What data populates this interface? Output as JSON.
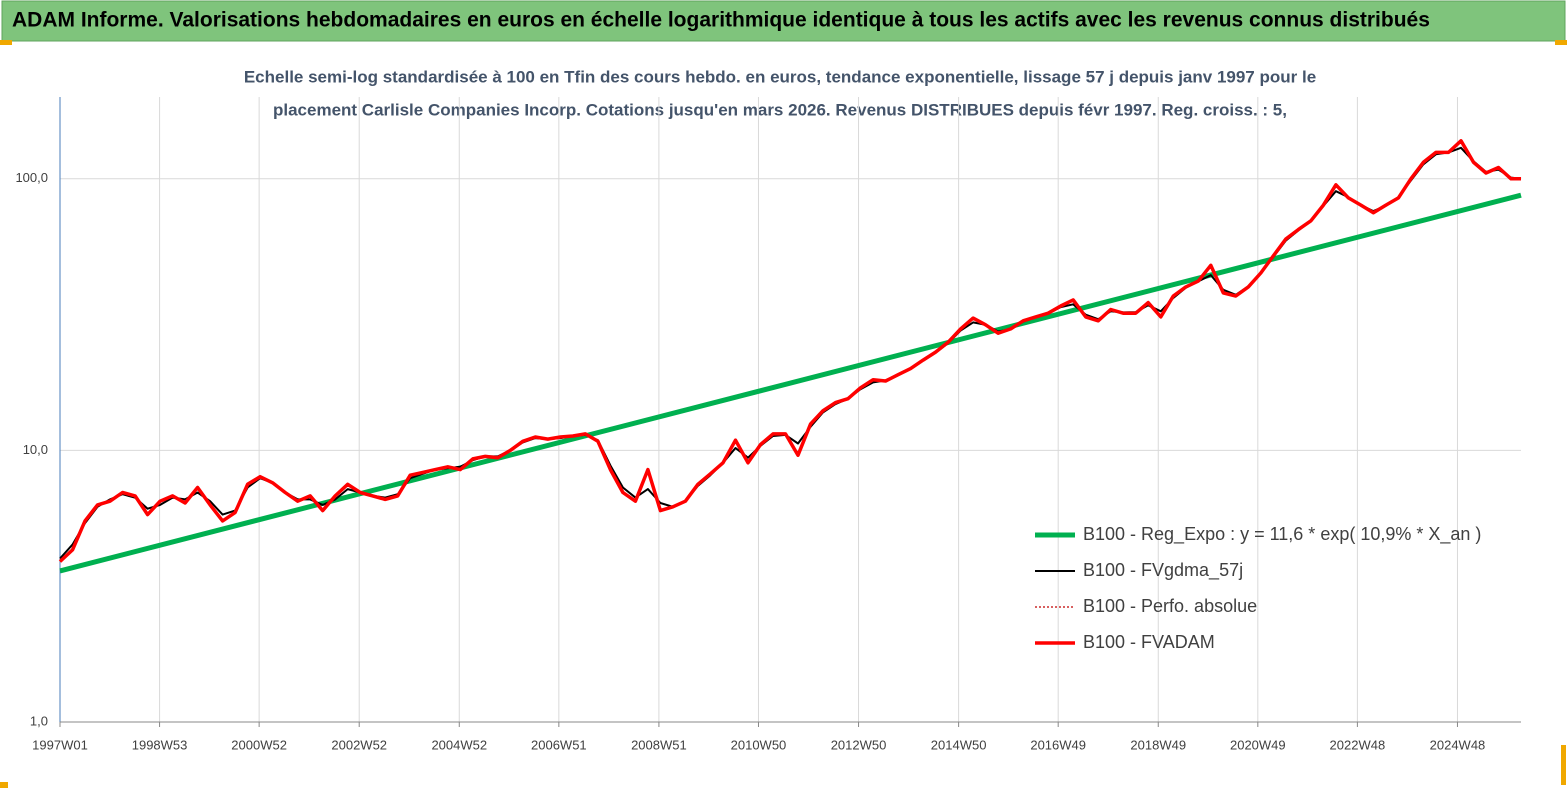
{
  "header": {
    "title": "ADAM Informe. Valorisations hebdomadaires en euros en échelle logarithmique identique à tous les actifs avec les revenus connus distribués"
  },
  "chart_data": {
    "type": "line",
    "subtitle": [
      "Echelle semi-log standardisée à 100 en Tfin des cours hebdo. en euros, tendance exponentielle, lissage 57 j depuis janv 1997 pour le",
      "placement Carlisle Companies Incorp. Cotations jusqu'en mars 2026. Revenus DISTRIBUES depuis févr 1997. Reg. croiss. : 5,"
    ],
    "log_y": true,
    "grid": true,
    "legend": "lower right",
    "xlim": [
      1997.0,
      2026.2
    ],
    "ylim": [
      1,
      200
    ],
    "yticks": [
      {
        "value": 1,
        "label": "1,0"
      },
      {
        "value": 10,
        "label": "10,0"
      },
      {
        "value": 100,
        "label": "100,0"
      }
    ],
    "xticks": [
      {
        "value": 1997.0,
        "label": "1997W01"
      },
      {
        "value": 1998.99,
        "label": "1998W53"
      },
      {
        "value": 2000.98,
        "label": "2000W52"
      },
      {
        "value": 2002.98,
        "label": "2002W52"
      },
      {
        "value": 2004.98,
        "label": "2004W52"
      },
      {
        "value": 2006.97,
        "label": "2006W51"
      },
      {
        "value": 2008.97,
        "label": "2008W51"
      },
      {
        "value": 2010.96,
        "label": "2010W50"
      },
      {
        "value": 2012.96,
        "label": "2012W50"
      },
      {
        "value": 2014.96,
        "label": "2014W50"
      },
      {
        "value": 2016.95,
        "label": "2016W49"
      },
      {
        "value": 2018.95,
        "label": "2018W49"
      },
      {
        "value": 2020.94,
        "label": "2020W49"
      },
      {
        "value": 2022.93,
        "label": "2022W48"
      },
      {
        "value": 2024.93,
        "label": "2024W48"
      }
    ],
    "x": [
      1997.0,
      1997.25,
      1997.5,
      1997.75,
      1998.0,
      1998.25,
      1998.5,
      1998.75,
      1999.0,
      1999.25,
      1999.5,
      1999.75,
      2000.0,
      2000.25,
      2000.5,
      2000.75,
      2001.0,
      2001.25,
      2001.5,
      2001.75,
      2002.0,
      2002.25,
      2002.5,
      2002.75,
      2003.0,
      2003.25,
      2003.5,
      2003.75,
      2004.0,
      2004.25,
      2004.5,
      2004.75,
      2005.0,
      2005.25,
      2005.5,
      2005.75,
      2006.0,
      2006.25,
      2006.5,
      2006.75,
      2007.0,
      2007.25,
      2007.5,
      2007.75,
      2008.0,
      2008.25,
      2008.5,
      2008.75,
      2009.0,
      2009.25,
      2009.5,
      2009.75,
      2010.0,
      2010.25,
      2010.5,
      2010.75,
      2011.0,
      2011.25,
      2011.5,
      2011.75,
      2012.0,
      2012.25,
      2012.5,
      2012.75,
      2013.0,
      2013.25,
      2013.5,
      2013.75,
      2014.0,
      2014.25,
      2014.5,
      2014.75,
      2015.0,
      2015.25,
      2015.5,
      2015.75,
      2016.0,
      2016.25,
      2016.5,
      2016.75,
      2017.0,
      2017.25,
      2017.5,
      2017.75,
      2018.0,
      2018.25,
      2018.5,
      2018.75,
      2019.0,
      2019.25,
      2019.5,
      2019.75,
      2020.0,
      2020.25,
      2020.5,
      2020.75,
      2021.0,
      2021.25,
      2021.5,
      2021.75,
      2022.0,
      2022.25,
      2022.5,
      2022.75,
      2023.0,
      2023.25,
      2023.5,
      2023.75,
      2024.0,
      2024.25,
      2024.5,
      2024.75,
      2025.0,
      2025.25,
      2025.5,
      2025.75,
      2026.0,
      2026.2
    ],
    "series": [
      {
        "name": "B100 - Reg_Expo : y = 11,6 * exp( 10,9% *  X_an )",
        "color": "#00b050",
        "width": 5,
        "x": [
          1997.0,
          2026.2
        ],
        "values": [
          3.6,
          87
        ]
      },
      {
        "name": "B100 - FVgdma_57j",
        "color": "#000000",
        "width": 2,
        "values": [
          4.0,
          4.5,
          5.4,
          6.2,
          6.6,
          6.9,
          6.7,
          6.1,
          6.3,
          6.7,
          6.6,
          7.0,
          6.5,
          5.8,
          6.0,
          7.3,
          7.9,
          7.6,
          7.0,
          6.6,
          6.6,
          6.3,
          6.6,
          7.2,
          7.0,
          6.8,
          6.7,
          6.9,
          7.9,
          8.2,
          8.5,
          8.6,
          8.7,
          9.2,
          9.5,
          9.5,
          10.0,
          10.7,
          11.1,
          11.0,
          11.1,
          11.3,
          11.4,
          10.9,
          8.8,
          7.3,
          6.7,
          7.2,
          6.4,
          6.2,
          6.5,
          7.4,
          8.1,
          9.0,
          10.2,
          9.4,
          10.4,
          11.3,
          11.4,
          10.6,
          12.2,
          13.8,
          14.8,
          15.5,
          16.8,
          17.8,
          18.1,
          18.9,
          20.0,
          21.4,
          22.9,
          24.8,
          27.6,
          29.6,
          29.0,
          27.4,
          27.9,
          29.8,
          30.9,
          31.9,
          33.7,
          34.5,
          31.6,
          30.4,
          32.5,
          32.2,
          32.3,
          34.2,
          32.5,
          36.4,
          39.7,
          41.9,
          44.2,
          39.0,
          37.4,
          40.2,
          45.0,
          51.5,
          59.2,
          64.5,
          70.0,
          79.5,
          90.0,
          85.5,
          80.0,
          76.0,
          79.5,
          85.5,
          98.5,
          113.0,
          123.0,
          125.0,
          130.0,
          116.0,
          106.0,
          108.0,
          101.0,
          100.0
        ]
      },
      {
        "name": "B100 - Perfo. absolue",
        "color": "#c00000",
        "width": 1.2,
        "dash": "2,2",
        "values": [
          3.9,
          4.3,
          5.5,
          6.3,
          6.5,
          7.0,
          6.8,
          5.8,
          6.5,
          6.8,
          6.4,
          7.3,
          6.3,
          5.5,
          5.9,
          7.5,
          8.0,
          7.6,
          7.0,
          6.5,
          6.8,
          6.0,
          6.8,
          7.5,
          7.0,
          6.8,
          6.6,
          6.8,
          8.1,
          8.3,
          8.5,
          8.7,
          8.5,
          9.3,
          9.5,
          9.4,
          10.0,
          10.8,
          11.2,
          11.0,
          11.2,
          11.3,
          11.5,
          10.8,
          8.5,
          7.0,
          6.5,
          8.5,
          6.0,
          6.2,
          6.5,
          7.5,
          8.2,
          9.0,
          10.9,
          9.0,
          10.5,
          11.5,
          11.5,
          9.6,
          12.5,
          14.0,
          15.0,
          15.5,
          17.0,
          18.2,
          18.0,
          19.0,
          20.0,
          21.5,
          23.0,
          25.0,
          28.0,
          30.7,
          29.0,
          27.0,
          28.0,
          30.0,
          31.0,
          32.0,
          34.0,
          35.8,
          31.0,
          30.0,
          33.0,
          32.0,
          32.0,
          35.0,
          31.0,
          37.0,
          40.0,
          42.0,
          48.0,
          38.0,
          37.0,
          40.0,
          45.0,
          52.0,
          60.0,
          65.0,
          70.0,
          80.0,
          95.0,
          85.0,
          80.0,
          75.0,
          80.0,
          85.0,
          100.0,
          115.0,
          125.0,
          125.0,
          138.0,
          115.0,
          105.0,
          110.0,
          100.0,
          100.0
        ]
      },
      {
        "name": "B100 - FVADAM",
        "color": "#ff0000",
        "width": 3.5,
        "values": [
          3.9,
          4.3,
          5.5,
          6.3,
          6.5,
          7.0,
          6.8,
          5.8,
          6.5,
          6.8,
          6.4,
          7.3,
          6.3,
          5.5,
          5.9,
          7.5,
          8.0,
          7.6,
          7.0,
          6.5,
          6.8,
          6.0,
          6.8,
          7.5,
          7.0,
          6.8,
          6.6,
          6.8,
          8.1,
          8.3,
          8.5,
          8.7,
          8.5,
          9.3,
          9.5,
          9.4,
          10.0,
          10.8,
          11.2,
          11.0,
          11.2,
          11.3,
          11.5,
          10.8,
          8.5,
          7.0,
          6.5,
          8.5,
          6.0,
          6.2,
          6.5,
          7.5,
          8.2,
          9.0,
          10.9,
          9.0,
          10.5,
          11.5,
          11.5,
          9.6,
          12.5,
          14.0,
          15.0,
          15.5,
          17.0,
          18.2,
          18.0,
          19.0,
          20.0,
          21.5,
          23.0,
          25.0,
          28.0,
          30.7,
          29.0,
          27.0,
          28.0,
          30.0,
          31.0,
          32.0,
          34.0,
          35.8,
          31.0,
          30.0,
          33.0,
          32.0,
          32.0,
          35.0,
          31.0,
          37.0,
          40.0,
          42.0,
          48.0,
          38.0,
          37.0,
          40.0,
          45.0,
          52.0,
          60.0,
          65.0,
          70.0,
          80.0,
          95.0,
          85.0,
          80.0,
          75.0,
          80.0,
          85.0,
          100.0,
          115.0,
          125.0,
          125.0,
          138.0,
          115.0,
          105.0,
          110.0,
          100.0,
          100.0
        ]
      }
    ]
  }
}
